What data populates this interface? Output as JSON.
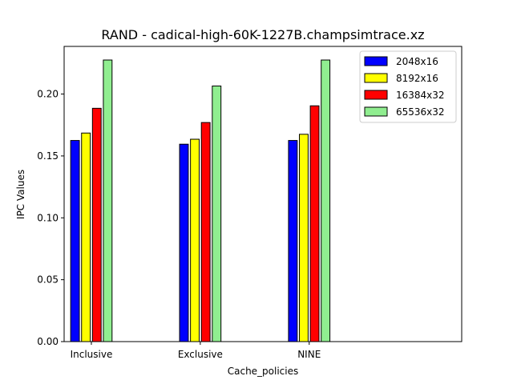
{
  "chart_data": {
    "type": "bar",
    "title": "RAND - cadical-high-60K-1227B.champsimtrace.xz",
    "xlabel": "Cache_policies",
    "ylabel": "IPC Values",
    "categories": [
      "Inclusive",
      "Exclusive",
      "NINE"
    ],
    "xlim": [
      -0.25,
      3.4
    ],
    "ylim": [
      0.0,
      0.2385
    ],
    "yticks": [
      "0.00",
      "0.05",
      "0.10",
      "0.15",
      "0.20"
    ],
    "grid": false,
    "legend_position": "top-right",
    "series": [
      {
        "name": "2048x16",
        "color": "#0000ff",
        "values": [
          0.1625,
          0.1595,
          0.1625
        ]
      },
      {
        "name": "8192x16",
        "color": "#ffff00",
        "values": [
          0.1685,
          0.1635,
          0.1675
        ]
      },
      {
        "name": "16384x32",
        "color": "#ff0000",
        "values": [
          0.1885,
          0.177,
          0.1905
        ]
      },
      {
        "name": "65536x32",
        "color": "#90ee90",
        "values": [
          0.2275,
          0.2065,
          0.2275
        ]
      }
    ]
  }
}
